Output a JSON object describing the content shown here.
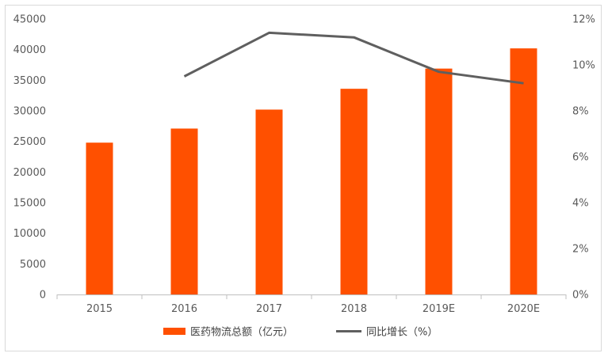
{
  "chart_data": {
    "type": "bar",
    "categories": [
      "2015",
      "2016",
      "2017",
      "2018",
      "2019E",
      "2020E"
    ],
    "series": [
      {
        "name": "医药物流总额（亿元）",
        "type": "bar",
        "axis": "left",
        "color": "#ff5000",
        "values": [
          24800,
          27100,
          30200,
          33600,
          36900,
          40200
        ]
      },
      {
        "name": "同比增长（%）",
        "type": "line",
        "axis": "right",
        "color": "#5f5f5f",
        "values": [
          null,
          9.5,
          11.4,
          11.2,
          9.7,
          9.2
        ]
      }
    ],
    "y_left": {
      "min": 0,
      "max": 45000,
      "step": 5000
    },
    "y_right": {
      "min": 0,
      "max": 12,
      "step": 2,
      "suffix": "%"
    },
    "grid": false,
    "legend_position": "bottom"
  }
}
